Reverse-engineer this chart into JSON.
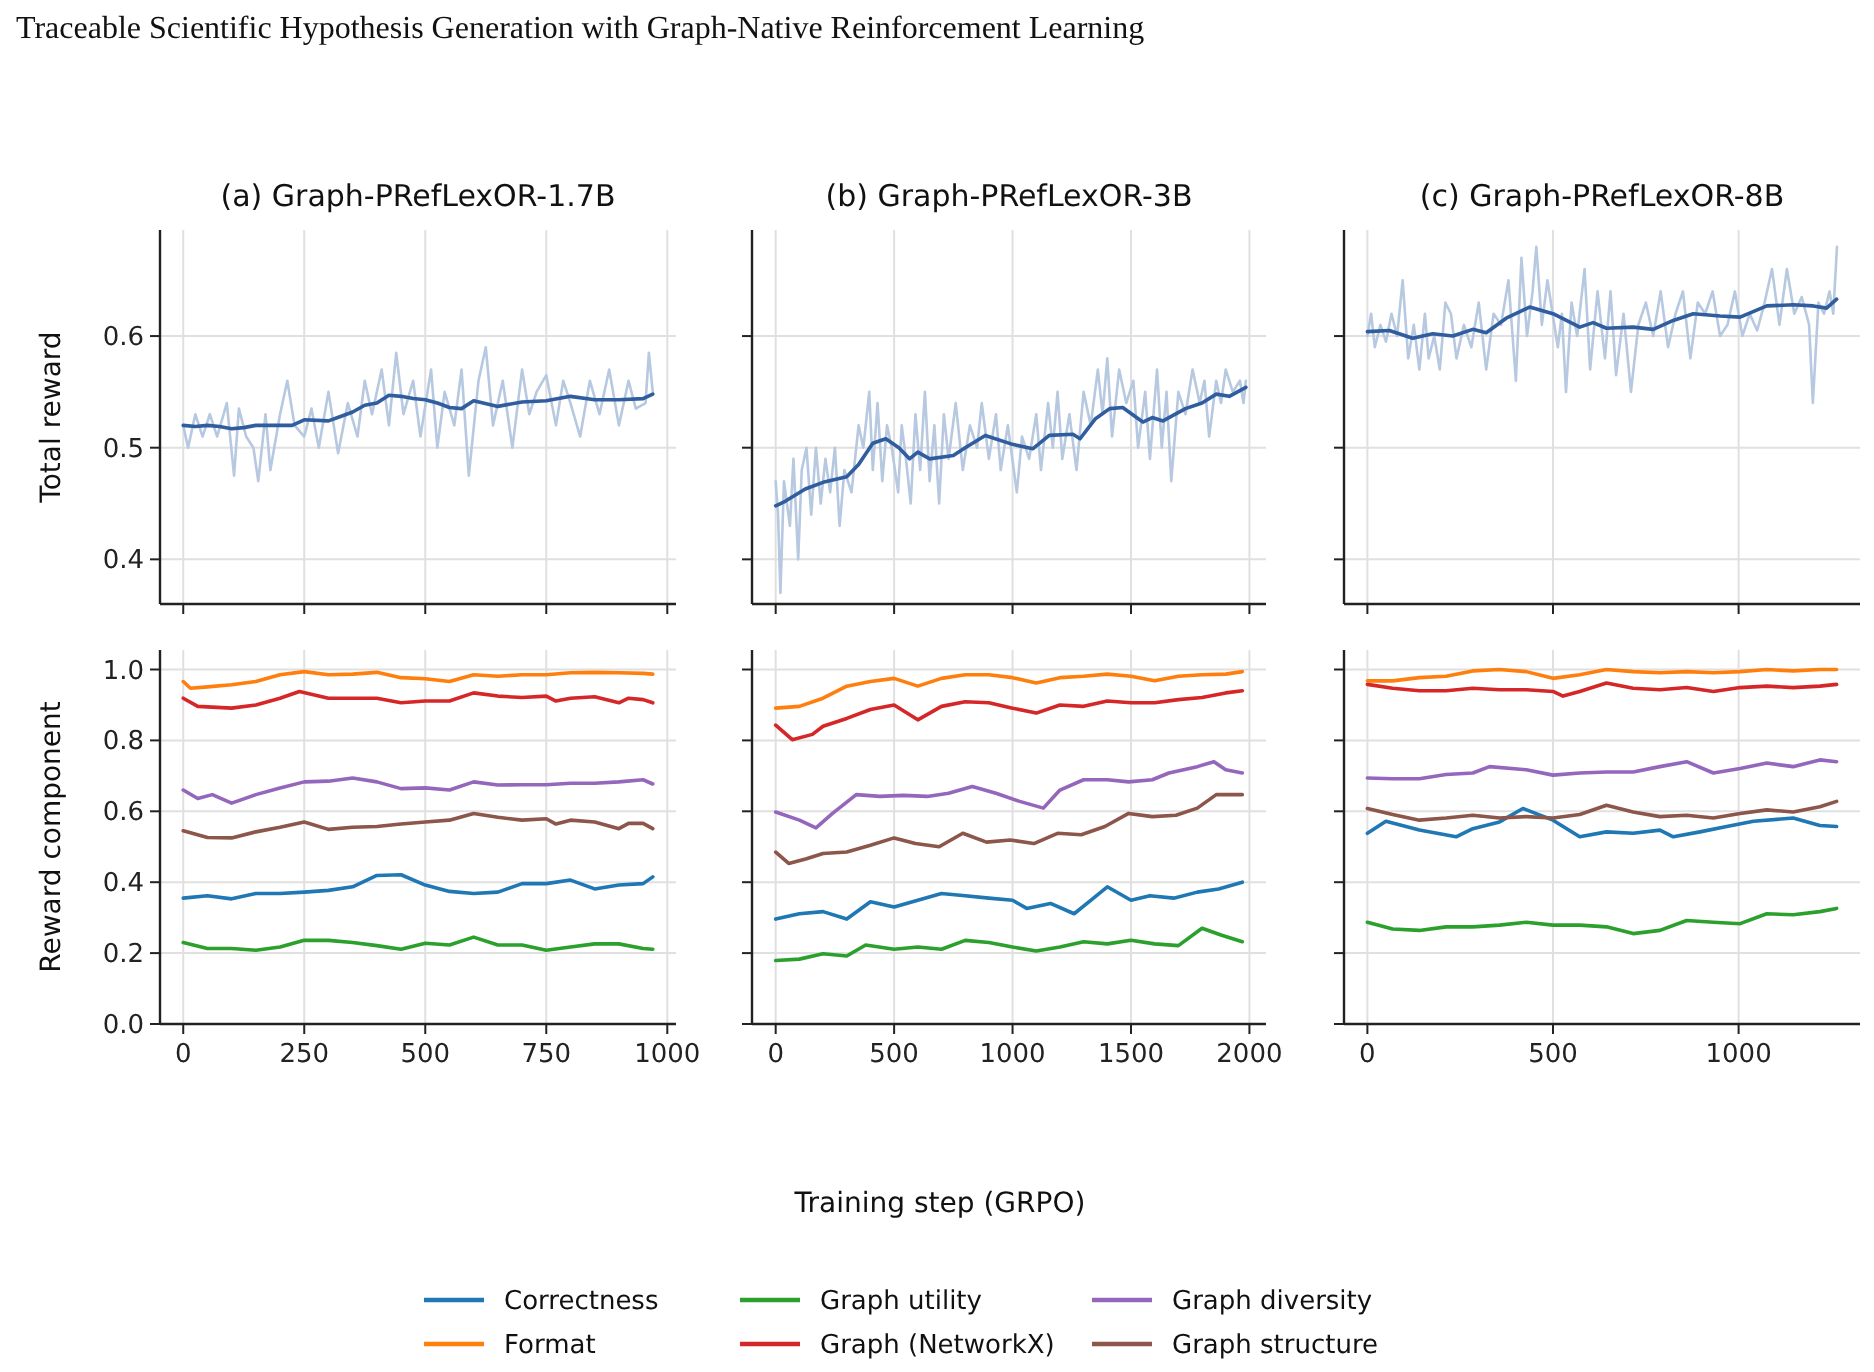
{
  "chart_data": [
    {
      "type": "line",
      "title": "(a) Graph-PRefLexOR-1.7B",
      "ylabel": "Total reward",
      "annotations": [
        "Traceable Scientific Hypothesis Generation with Graph-Native Reinforcement Learning"
      ],
      "xlim": [
        -48,
        1018
      ],
      "ylim": [
        0.36,
        0.695
      ],
      "xticks": [
        0,
        250,
        500,
        750,
        1000
      ],
      "yticks": [
        0.4,
        0.5,
        0.6
      ],
      "grid": true,
      "tick_labels": "y",
      "series": [
        {
          "color": "#b7c8e1",
          "x": [
            0,
            10,
            25,
            40,
            55,
            70,
            90,
            105,
            115,
            130,
            145,
            155,
            170,
            180,
            200,
            215,
            230,
            250,
            265,
            280,
            300,
            320,
            340,
            360,
            375,
            390,
            410,
            425,
            440,
            455,
            475,
            490,
            512,
            525,
            540,
            560,
            575,
            590,
            610,
            625,
            640,
            660,
            680,
            700,
            715,
            730,
            750,
            770,
            785,
            800,
            820,
            840,
            860,
            880,
            900,
            920,
            935,
            955,
            962,
            970
          ],
          "values": [
            0.52,
            0.5,
            0.53,
            0.51,
            0.53,
            0.51,
            0.54,
            0.475,
            0.535,
            0.51,
            0.5,
            0.47,
            0.53,
            0.48,
            0.53,
            0.56,
            0.52,
            0.51,
            0.535,
            0.5,
            0.55,
            0.495,
            0.54,
            0.51,
            0.56,
            0.53,
            0.57,
            0.52,
            0.585,
            0.53,
            0.56,
            0.51,
            0.57,
            0.5,
            0.55,
            0.52,
            0.57,
            0.475,
            0.56,
            0.59,
            0.52,
            0.56,
            0.5,
            0.57,
            0.53,
            0.55,
            0.565,
            0.52,
            0.56,
            0.54,
            0.51,
            0.56,
            0.53,
            0.57,
            0.52,
            0.56,
            0.535,
            0.54,
            0.585,
            0.55
          ]
        },
        {
          "color": "#2f5d9e",
          "x": [
            0,
            25,
            50,
            75,
            100,
            125,
            150,
            175,
            200,
            225,
            250,
            300,
            325,
            350,
            375,
            400,
            425,
            450,
            475,
            500,
            525,
            550,
            575,
            600,
            650,
            700,
            750,
            800,
            850,
            900,
            950,
            970
          ],
          "values": [
            0.52,
            0.519,
            0.52,
            0.519,
            0.517,
            0.518,
            0.52,
            0.52,
            0.52,
            0.52,
            0.525,
            0.524,
            0.528,
            0.532,
            0.538,
            0.54,
            0.547,
            0.546,
            0.544,
            0.543,
            0.54,
            0.536,
            0.535,
            0.542,
            0.537,
            0.541,
            0.542,
            0.546,
            0.543,
            0.543,
            0.544,
            0.548
          ]
        }
      ]
    },
    {
      "type": "line",
      "title": "(b) Graph-PRefLexOR-3B",
      "xlim": [
        -100,
        2070
      ],
      "ylim": [
        0.36,
        0.695
      ],
      "xticks": [
        0,
        500,
        1000,
        1500,
        2000
      ],
      "yticks": [
        0.4,
        0.5,
        0.6
      ],
      "grid": true,
      "tick_labels": false,
      "series": [
        {
          "color": "#b7c8e1",
          "x": [
            0,
            10,
            20,
            35,
            60,
            75,
            95,
            110,
            130,
            150,
            170,
            190,
            210,
            230,
            250,
            270,
            290,
            320,
            350,
            370,
            395,
            410,
            430,
            450,
            470,
            490,
            517,
            532,
            550,
            570,
            590,
            610,
            630,
            650,
            670,
            690,
            710,
            730,
            760,
            790,
            820,
            850,
            870,
            900,
            930,
            950,
            980,
            1018,
            1040,
            1070,
            1100,
            1120,
            1150,
            1170,
            1190,
            1210,
            1240,
            1270,
            1300,
            1330,
            1360,
            1380,
            1400,
            1420,
            1450,
            1480,
            1510,
            1530,
            1560,
            1580,
            1610,
            1630,
            1650,
            1670,
            1700,
            1730,
            1760,
            1790,
            1810,
            1830,
            1860,
            1880,
            1900,
            1930,
            1960,
            1975,
            1985
          ],
          "values": [
            0.47,
            0.44,
            0.37,
            0.47,
            0.43,
            0.49,
            0.4,
            0.48,
            0.5,
            0.44,
            0.5,
            0.45,
            0.49,
            0.46,
            0.5,
            0.43,
            0.48,
            0.46,
            0.52,
            0.5,
            0.55,
            0.48,
            0.54,
            0.47,
            0.52,
            0.5,
            0.46,
            0.52,
            0.49,
            0.45,
            0.53,
            0.48,
            0.55,
            0.47,
            0.52,
            0.45,
            0.53,
            0.49,
            0.54,
            0.48,
            0.52,
            0.5,
            0.54,
            0.49,
            0.53,
            0.48,
            0.52,
            0.46,
            0.51,
            0.49,
            0.53,
            0.48,
            0.54,
            0.5,
            0.55,
            0.49,
            0.53,
            0.48,
            0.55,
            0.52,
            0.57,
            0.53,
            0.58,
            0.51,
            0.57,
            0.54,
            0.56,
            0.5,
            0.55,
            0.49,
            0.57,
            0.5,
            0.55,
            0.47,
            0.55,
            0.53,
            0.57,
            0.54,
            0.56,
            0.51,
            0.56,
            0.54,
            0.57,
            0.55,
            0.56,
            0.54,
            0.56
          ]
        },
        {
          "color": "#2f5d9e",
          "x": [
            0,
            40,
            125,
            200,
            300,
            350,
            410,
            465,
            520,
            565,
            600,
            650,
            750,
            800,
            885,
            1000,
            1085,
            1155,
            1255,
            1285,
            1350,
            1410,
            1465,
            1550,
            1590,
            1635,
            1730,
            1800,
            1860,
            1915,
            1985
          ],
          "values": [
            0.448,
            0.452,
            0.463,
            0.469,
            0.474,
            0.485,
            0.504,
            0.508,
            0.5,
            0.49,
            0.496,
            0.49,
            0.493,
            0.5,
            0.511,
            0.503,
            0.499,
            0.511,
            0.512,
            0.508,
            0.526,
            0.535,
            0.536,
            0.523,
            0.527,
            0.524,
            0.535,
            0.54,
            0.548,
            0.546,
            0.554
          ]
        }
      ]
    },
    {
      "type": "line",
      "title": "(c) Graph-PRefLexOR-8B",
      "xlim": [
        -63,
        1327
      ],
      "ylim": [
        0.36,
        0.695
      ],
      "xticks": [
        0,
        500,
        1000
      ],
      "yticks": [
        0.4,
        0.5,
        0.6
      ],
      "grid": true,
      "tick_labels": false,
      "series": [
        {
          "color": "#b7c8e1",
          "x": [
            0,
            10,
            20,
            35,
            50,
            65,
            80,
            95,
            110,
            125,
            140,
            155,
            165,
            180,
            195,
            210,
            225,
            240,
            260,
            280,
            300,
            320,
            340,
            360,
            380,
            400,
            415,
            430,
            445,
            455,
            470,
            485,
            513,
            524,
            535,
            550,
            565,
            585,
            600,
            620,
            640,
            655,
            670,
            690,
            710,
            730,
            750,
            770,
            790,
            810,
            830,
            850,
            870,
            890,
            910,
            930,
            950,
            970,
            990,
            1010,
            1030,
            1050,
            1070,
            1090,
            1110,
            1130,
            1150,
            1170,
            1190,
            1200,
            1215,
            1230,
            1245,
            1255,
            1265
          ],
          "values": [
            0.6,
            0.62,
            0.59,
            0.61,
            0.595,
            0.62,
            0.6,
            0.65,
            0.58,
            0.61,
            0.57,
            0.62,
            0.58,
            0.6,
            0.57,
            0.63,
            0.62,
            0.58,
            0.61,
            0.59,
            0.63,
            0.57,
            0.62,
            0.61,
            0.65,
            0.56,
            0.67,
            0.6,
            0.64,
            0.68,
            0.61,
            0.65,
            0.59,
            0.62,
            0.55,
            0.63,
            0.6,
            0.66,
            0.57,
            0.64,
            0.58,
            0.64,
            0.565,
            0.62,
            0.55,
            0.61,
            0.63,
            0.6,
            0.64,
            0.59,
            0.62,
            0.64,
            0.58,
            0.63,
            0.62,
            0.64,
            0.6,
            0.61,
            0.64,
            0.6,
            0.62,
            0.605,
            0.63,
            0.66,
            0.61,
            0.66,
            0.62,
            0.635,
            0.61,
            0.54,
            0.63,
            0.62,
            0.64,
            0.62,
            0.68
          ]
        },
        {
          "color": "#2f5d9e",
          "x": [
            0,
            59,
            122,
            176,
            230,
            284,
            320,
            374,
            437,
            500,
            572,
            608,
            644,
            716,
            770,
            824,
            878,
            950,
            1004,
            1076,
            1147,
            1201,
            1237,
            1264
          ],
          "values": [
            0.604,
            0.605,
            0.598,
            0.602,
            0.6,
            0.606,
            0.603,
            0.616,
            0.626,
            0.62,
            0.608,
            0.612,
            0.607,
            0.608,
            0.606,
            0.614,
            0.62,
            0.618,
            0.617,
            0.627,
            0.628,
            0.627,
            0.625,
            0.633
          ]
        }
      ]
    },
    {
      "type": "line",
      "ylabel": "Reward component",
      "xlim": [
        -48,
        1018
      ],
      "ylim": [
        0,
        1.055
      ],
      "xticks": [
        0,
        250,
        500,
        750,
        1000
      ],
      "yticks": [
        {
          "value": 0,
          "label": "0.0"
        },
        0.2,
        0.4,
        0.6,
        0.8,
        {
          "value": 1,
          "label": "1.0"
        }
      ],
      "grid": true,
      "legend": "bottom",
      "series": [
        {
          "name": "Correctness",
          "color": "#1f77b4",
          "x": [
            0,
            50,
            100,
            150,
            200,
            250,
            300,
            350,
            400,
            450,
            500,
            550,
            600,
            650,
            700,
            750,
            800,
            850,
            900,
            950,
            970
          ],
          "values": [
            0.355,
            0.362,
            0.353,
            0.368,
            0.368,
            0.372,
            0.377,
            0.387,
            0.419,
            0.421,
            0.392,
            0.374,
            0.368,
            0.372,
            0.396,
            0.396,
            0.406,
            0.381,
            0.392,
            0.396,
            0.415
          ]
        },
        {
          "name": "Format",
          "color": "#ff7f0e",
          "x": [
            0,
            15,
            50,
            100,
            150,
            200,
            250,
            300,
            350,
            400,
            450,
            500,
            550,
            600,
            650,
            700,
            750,
            800,
            850,
            900,
            950,
            970
          ],
          "values": [
            0.966,
            0.947,
            0.951,
            0.957,
            0.966,
            0.985,
            0.994,
            0.985,
            0.987,
            0.992,
            0.977,
            0.974,
            0.966,
            0.985,
            0.981,
            0.985,
            0.985,
            0.991,
            0.992,
            0.991,
            0.989,
            0.987
          ]
        },
        {
          "name": "Graph utility",
          "color": "#2ca02c",
          "x": [
            0,
            50,
            100,
            150,
            200,
            250,
            300,
            350,
            400,
            450,
            500,
            550,
            600,
            650,
            700,
            750,
            800,
            850,
            900,
            950,
            970
          ],
          "values": [
            0.23,
            0.213,
            0.213,
            0.208,
            0.217,
            0.236,
            0.236,
            0.23,
            0.221,
            0.211,
            0.228,
            0.223,
            0.245,
            0.223,
            0.223,
            0.208,
            0.217,
            0.226,
            0.226,
            0.213,
            0.211
          ]
        },
        {
          "name": "Graph (NetworkX)",
          "color": "#d62728",
          "x": [
            0,
            30,
            100,
            150,
            200,
            240,
            300,
            350,
            400,
            450,
            500,
            550,
            600,
            650,
            700,
            750,
            770,
            800,
            850,
            900,
            920,
            950,
            970
          ],
          "values": [
            0.919,
            0.896,
            0.891,
            0.9,
            0.919,
            0.938,
            0.919,
            0.919,
            0.919,
            0.906,
            0.911,
            0.911,
            0.934,
            0.925,
            0.921,
            0.925,
            0.911,
            0.919,
            0.923,
            0.906,
            0.919,
            0.915,
            0.906
          ]
        },
        {
          "name": "Graph diversity",
          "color": "#9467bd",
          "x": [
            0,
            30,
            60,
            100,
            150,
            200,
            250,
            300,
            350,
            400,
            450,
            500,
            550,
            600,
            650,
            700,
            750,
            800,
            850,
            900,
            950,
            970
          ],
          "values": [
            0.66,
            0.636,
            0.647,
            0.623,
            0.647,
            0.666,
            0.683,
            0.685,
            0.694,
            0.683,
            0.664,
            0.666,
            0.66,
            0.683,
            0.674,
            0.675,
            0.675,
            0.679,
            0.679,
            0.683,
            0.689,
            0.677
          ]
        },
        {
          "name": "Graph structure",
          "color": "#8c564b",
          "x": [
            0,
            50,
            100,
            150,
            200,
            250,
            300,
            350,
            400,
            450,
            500,
            550,
            600,
            650,
            700,
            750,
            770,
            800,
            850,
            900,
            920,
            950,
            970
          ],
          "values": [
            0.545,
            0.526,
            0.525,
            0.542,
            0.555,
            0.57,
            0.549,
            0.555,
            0.557,
            0.564,
            0.57,
            0.575,
            0.594,
            0.583,
            0.575,
            0.579,
            0.564,
            0.575,
            0.57,
            0.551,
            0.566,
            0.566,
            0.551
          ]
        }
      ]
    },
    {
      "type": "line",
      "xlabel": "Training step (GRPO)",
      "xlim": [
        -100,
        2070
      ],
      "ylim": [
        0,
        1.055
      ],
      "xticks": [
        0,
        500,
        1000,
        1500,
        2000
      ],
      "yticks": [
        0,
        0.2,
        0.4,
        0.6,
        0.8,
        1
      ],
      "grid": true,
      "tick_labels": "x",
      "series": [
        {
          "color": "#1f77b4",
          "x": [
            0,
            100,
            200,
            300,
            400,
            500,
            600,
            700,
            800,
            900,
            1000,
            1060,
            1160,
            1260,
            1330,
            1400,
            1500,
            1580,
            1680,
            1780,
            1870,
            1970
          ],
          "values": [
            0.296,
            0.311,
            0.317,
            0.296,
            0.345,
            0.33,
            0.349,
            0.368,
            0.362,
            0.355,
            0.349,
            0.326,
            0.34,
            0.311,
            0.349,
            0.387,
            0.349,
            0.362,
            0.355,
            0.372,
            0.381,
            0.4
          ]
        },
        {
          "color": "#ff7f0e",
          "x": [
            0,
            100,
            200,
            300,
            400,
            500,
            600,
            700,
            800,
            900,
            1000,
            1100,
            1200,
            1300,
            1400,
            1500,
            1600,
            1700,
            1800,
            1900,
            1970
          ],
          "values": [
            0.891,
            0.896,
            0.919,
            0.953,
            0.966,
            0.975,
            0.953,
            0.975,
            0.985,
            0.985,
            0.977,
            0.962,
            0.977,
            0.981,
            0.987,
            0.981,
            0.968,
            0.981,
            0.985,
            0.987,
            0.994
          ]
        },
        {
          "color": "#2ca02c",
          "x": [
            0,
            100,
            200,
            300,
            380,
            500,
            600,
            700,
            800,
            900,
            1000,
            1100,
            1200,
            1300,
            1400,
            1500,
            1600,
            1700,
            1800,
            1880,
            1970
          ],
          "values": [
            0.179,
            0.183,
            0.198,
            0.192,
            0.223,
            0.211,
            0.217,
            0.211,
            0.236,
            0.23,
            0.217,
            0.206,
            0.217,
            0.232,
            0.226,
            0.236,
            0.226,
            0.221,
            0.27,
            0.251,
            0.232
          ]
        },
        {
          "color": "#d62728",
          "x": [
            0,
            70,
            155,
            200,
            300,
            400,
            500,
            600,
            700,
            800,
            900,
            1000,
            1100,
            1200,
            1300,
            1400,
            1500,
            1600,
            1700,
            1800,
            1900,
            1970
          ],
          "values": [
            0.843,
            0.802,
            0.817,
            0.84,
            0.862,
            0.887,
            0.9,
            0.858,
            0.896,
            0.909,
            0.906,
            0.891,
            0.877,
            0.9,
            0.896,
            0.911,
            0.906,
            0.906,
            0.915,
            0.921,
            0.934,
            0.94
          ]
        },
        {
          "color": "#9467bd",
          "x": [
            0,
            100,
            170,
            240,
            340,
            440,
            540,
            640,
            730,
            830,
            930,
            1030,
            1130,
            1200,
            1300,
            1400,
            1490,
            1590,
            1660,
            1780,
            1850,
            1900,
            1970
          ],
          "values": [
            0.598,
            0.575,
            0.553,
            0.594,
            0.647,
            0.642,
            0.645,
            0.642,
            0.651,
            0.67,
            0.651,
            0.628,
            0.609,
            0.66,
            0.689,
            0.689,
            0.683,
            0.689,
            0.708,
            0.726,
            0.74,
            0.717,
            0.708
          ]
        },
        {
          "color": "#8c564b",
          "x": [
            0,
            55,
            130,
            200,
            300,
            400,
            500,
            590,
            690,
            790,
            890,
            990,
            1090,
            1190,
            1290,
            1390,
            1490,
            1590,
            1690,
            1780,
            1860,
            1970
          ],
          "values": [
            0.485,
            0.453,
            0.466,
            0.481,
            0.485,
            0.504,
            0.525,
            0.509,
            0.5,
            0.538,
            0.513,
            0.519,
            0.509,
            0.538,
            0.534,
            0.557,
            0.594,
            0.585,
            0.589,
            0.609,
            0.647,
            0.647
          ]
        }
      ]
    },
    {
      "type": "line",
      "xlim": [
        -63,
        1327
      ],
      "ylim": [
        0,
        1.055
      ],
      "xticks": [
        0,
        500,
        1000
      ],
      "yticks": [
        0,
        0.2,
        0.4,
        0.6,
        0.8,
        1
      ],
      "grid": true,
      "tick_labels": "x",
      "series": [
        {
          "color": "#1f77b4",
          "x": [
            0,
            50,
            140,
            239,
            284,
            356,
            419,
            500,
            572,
            644,
            716,
            788,
            824,
            896,
            968,
            1040,
            1147,
            1219,
            1264
          ],
          "values": [
            0.538,
            0.572,
            0.547,
            0.528,
            0.551,
            0.57,
            0.608,
            0.575,
            0.528,
            0.542,
            0.538,
            0.547,
            0.528,
            0.542,
            0.557,
            0.572,
            0.581,
            0.56,
            0.557
          ]
        },
        {
          "color": "#ff7f0e",
          "x": [
            0,
            68,
            140,
            212,
            284,
            356,
            428,
            500,
            572,
            644,
            716,
            788,
            860,
            932,
            1004,
            1076,
            1147,
            1219,
            1264
          ],
          "values": [
            0.968,
            0.968,
            0.977,
            0.981,
            0.996,
            1.0,
            0.994,
            0.975,
            0.985,
            1.0,
            0.994,
            0.991,
            0.994,
            0.991,
            0.994,
            1.0,
            0.996,
            1.0,
            1.0
          ]
        },
        {
          "color": "#2ca02c",
          "x": [
            0,
            68,
            140,
            212,
            284,
            356,
            428,
            500,
            572,
            644,
            716,
            788,
            860,
            932,
            1004,
            1076,
            1147,
            1219,
            1264
          ],
          "values": [
            0.287,
            0.268,
            0.264,
            0.274,
            0.274,
            0.279,
            0.287,
            0.279,
            0.279,
            0.274,
            0.255,
            0.264,
            0.292,
            0.287,
            0.283,
            0.311,
            0.308,
            0.317,
            0.326
          ]
        },
        {
          "color": "#d62728",
          "x": [
            0,
            68,
            140,
            212,
            284,
            356,
            428,
            500,
            527,
            572,
            644,
            716,
            788,
            860,
            932,
            1004,
            1076,
            1147,
            1219,
            1264
          ],
          "values": [
            0.958,
            0.947,
            0.94,
            0.94,
            0.947,
            0.943,
            0.943,
            0.938,
            0.925,
            0.938,
            0.962,
            0.947,
            0.943,
            0.949,
            0.938,
            0.949,
            0.953,
            0.949,
            0.953,
            0.958
          ]
        },
        {
          "color": "#9467bd",
          "x": [
            0,
            68,
            140,
            212,
            284,
            329,
            428,
            500,
            572,
            644,
            716,
            788,
            860,
            932,
            1004,
            1076,
            1147,
            1219,
            1264
          ],
          "values": [
            0.694,
            0.692,
            0.692,
            0.704,
            0.708,
            0.726,
            0.717,
            0.702,
            0.708,
            0.711,
            0.711,
            0.726,
            0.74,
            0.708,
            0.721,
            0.736,
            0.726,
            0.745,
            0.74
          ]
        },
        {
          "color": "#8c564b",
          "x": [
            0,
            68,
            140,
            212,
            284,
            356,
            428,
            500,
            572,
            644,
            716,
            788,
            860,
            932,
            1004,
            1076,
            1147,
            1219,
            1264
          ],
          "values": [
            0.608,
            0.591,
            0.575,
            0.581,
            0.589,
            0.581,
            0.585,
            0.581,
            0.591,
            0.617,
            0.598,
            0.585,
            0.589,
            0.581,
            0.594,
            0.604,
            0.598,
            0.613,
            0.628
          ]
        }
      ]
    }
  ]
}
